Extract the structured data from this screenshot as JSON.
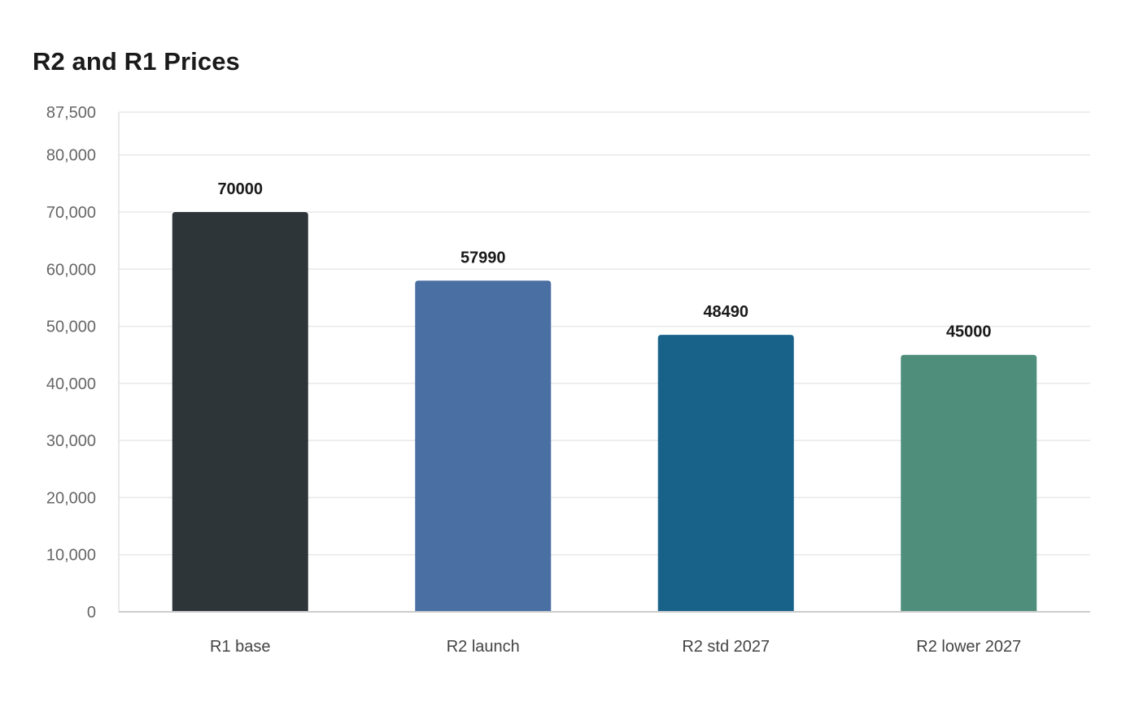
{
  "chart_data": {
    "type": "bar",
    "title": "R2 and R1 Prices",
    "xlabel": "",
    "ylabel": "",
    "categories": [
      "R1 base",
      "R2 launch",
      "R2 std 2027",
      "R2 lower 2027"
    ],
    "values": [
      70000,
      57990,
      48490,
      45000
    ],
    "data_labels": [
      "70000",
      "57990",
      "48490",
      "45000"
    ],
    "bar_colors": [
      "#2e3538",
      "#4a6fa3",
      "#186189",
      "#4e8e7b"
    ],
    "ylim": [
      0,
      87500
    ],
    "yticks": [
      0,
      10000,
      20000,
      30000,
      40000,
      50000,
      60000,
      70000,
      80000,
      87500
    ],
    "ytick_labels": [
      "0",
      "10,000",
      "20,000",
      "30,000",
      "40,000",
      "50,000",
      "60,000",
      "70,000",
      "80,000",
      "87,500"
    ],
    "grid": true,
    "legend": "none"
  }
}
